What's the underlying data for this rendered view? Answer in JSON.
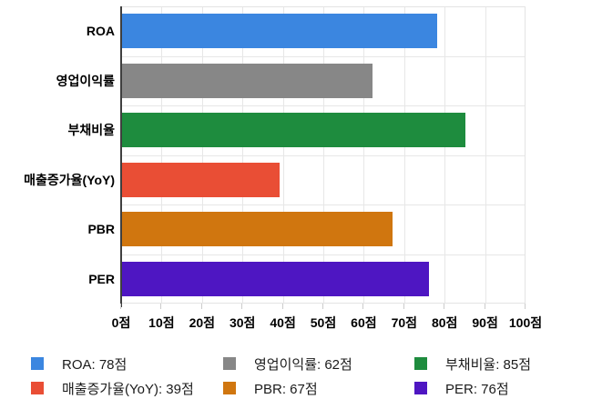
{
  "chart_data": {
    "type": "bar",
    "orientation": "horizontal",
    "title": "",
    "xlabel": "",
    "ylabel": "",
    "xlim": [
      0,
      100
    ],
    "grid": true,
    "value_unit": "점",
    "categories": [
      "ROA",
      "영업이익률",
      "부채비율",
      "매출증가율(YoY)",
      "PBR",
      "PER"
    ],
    "values": [
      78,
      62,
      85,
      39,
      67,
      76
    ],
    "colors": [
      "#3b86e0",
      "#878787",
      "#1e8c3e",
      "#e94e35",
      "#d0760f",
      "#4e16c2"
    ],
    "x_tick_labels": [
      "0점",
      "10점",
      "20점",
      "30점",
      "40점",
      "50점",
      "60점",
      "70점",
      "80점",
      "90점",
      "100점"
    ],
    "legend": {
      "position": "bottom",
      "items": [
        {
          "label": "ROA: 78점",
          "color": "#3b86e0"
        },
        {
          "label": "영업이익률: 62점",
          "color": "#878787"
        },
        {
          "label": "부채비율: 85점",
          "color": "#1e8c3e"
        },
        {
          "label": "매출증가율(YoY): 39점",
          "color": "#e94e35"
        },
        {
          "label": "PBR: 67점",
          "color": "#d0760f"
        },
        {
          "label": "PER: 76점",
          "color": "#4e16c2"
        }
      ]
    }
  }
}
